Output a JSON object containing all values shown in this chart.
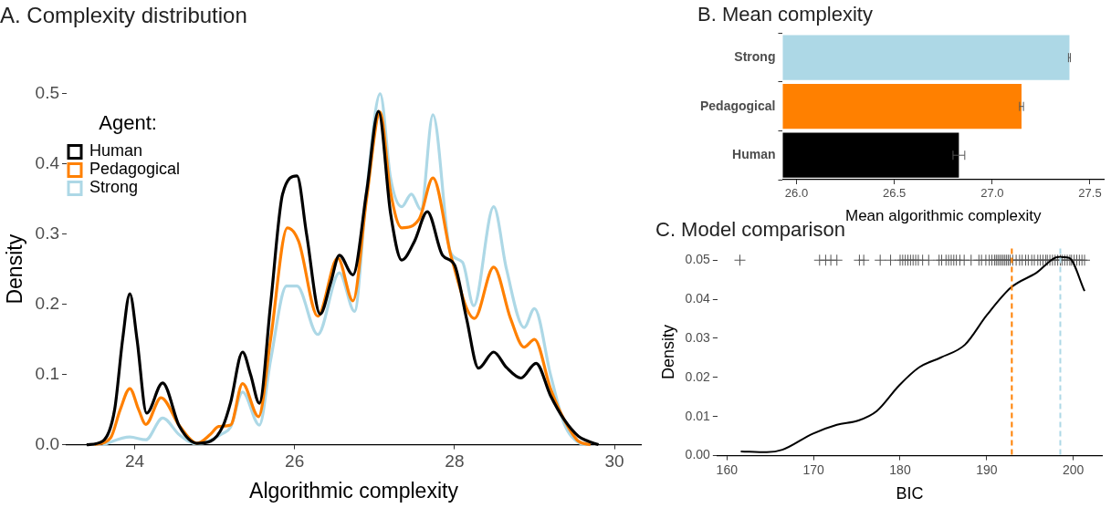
{
  "chart_data": [
    {
      "type": "line",
      "title": "A. Complexity distribution",
      "xlabel": "Algorithmic complexity",
      "ylabel": "Density",
      "legend_title": "Agent:",
      "legend": "top left",
      "marker": "none",
      "grid": false,
      "xlim": [
        23.15,
        30.33
      ],
      "xticks": [
        24,
        26,
        28,
        30
      ],
      "ylim": [
        0,
        0.5
      ],
      "yticks": [
        {
          "value": 0,
          "label": "0.0"
        },
        0.1,
        0.2,
        0.3,
        0.4,
        0.5
      ],
      "series": [
        {
          "name": "Human",
          "color": "#000000",
          "x": [
            23.4,
            23.6,
            23.75,
            23.85,
            23.94,
            24.03,
            24.15,
            24.35,
            24.56,
            24.78,
            24.95,
            25.11,
            25.2,
            25.35,
            25.45,
            25.56,
            25.7,
            25.85,
            26.03,
            26.15,
            26.32,
            26.45,
            26.56,
            26.73,
            26.9,
            27.05,
            27.2,
            27.34,
            27.5,
            27.66,
            27.85,
            28.0,
            28.15,
            28.3,
            28.49,
            28.65,
            28.83,
            29.02,
            29.2,
            29.37,
            29.55,
            29.65,
            29.8
          ],
          "values": [
            0,
            0.005,
            0.05,
            0.15,
            0.215,
            0.15,
            0.045,
            0.088,
            0.026,
            0.002,
            0.005,
            0.028,
            0.06,
            0.132,
            0.1,
            0.059,
            0.2,
            0.357,
            0.383,
            0.3,
            0.186,
            0.23,
            0.27,
            0.242,
            0.36,
            0.475,
            0.33,
            0.263,
            0.29,
            0.332,
            0.27,
            0.256,
            0.18,
            0.109,
            0.132,
            0.11,
            0.095,
            0.116,
            0.07,
            0.036,
            0.012,
            0.006,
            0
          ]
        },
        {
          "name": "Pedagogical",
          "color": "#ff8000",
          "x": [
            23.5,
            23.7,
            23.82,
            23.94,
            24.05,
            24.14,
            24.33,
            24.56,
            24.78,
            24.95,
            25.05,
            25.2,
            25.35,
            25.55,
            25.7,
            25.91,
            26.05,
            26.29,
            26.54,
            26.73,
            26.9,
            27.07,
            27.2,
            27.34,
            27.56,
            27.73,
            27.96,
            28.25,
            28.49,
            28.7,
            28.87,
            29.0,
            29.2,
            29.37,
            29.55,
            29.7
          ],
          "values": [
            0,
            0.01,
            0.05,
            0.08,
            0.05,
            0.029,
            0.067,
            0.027,
            0.002,
            0.015,
            0.026,
            0.028,
            0.087,
            0.04,
            0.15,
            0.309,
            0.29,
            0.183,
            0.266,
            0.205,
            0.35,
            0.474,
            0.36,
            0.309,
            0.322,
            0.38,
            0.267,
            0.18,
            0.253,
            0.18,
            0.139,
            0.15,
            0.08,
            0.036,
            0.005,
            0
          ]
        },
        {
          "name": "Strong",
          "color": "#add8e6",
          "x": [
            23.6,
            23.94,
            24.14,
            24.35,
            24.56,
            24.78,
            25.1,
            25.2,
            25.35,
            25.56,
            25.7,
            25.9,
            26.03,
            26.29,
            26.56,
            26.75,
            26.9,
            27.07,
            27.2,
            27.34,
            27.46,
            27.58,
            27.73,
            27.95,
            28.1,
            28.24,
            28.49,
            28.65,
            28.87,
            29.0,
            29.2,
            29.37,
            29.55,
            29.65
          ],
          "values": [
            0,
            0.011,
            0.007,
            0.038,
            0.014,
            0.001,
            0.016,
            0.025,
            0.075,
            0.028,
            0.12,
            0.226,
            0.226,
            0.157,
            0.245,
            0.19,
            0.36,
            0.5,
            0.38,
            0.339,
            0.357,
            0.335,
            0.47,
            0.274,
            0.26,
            0.198,
            0.339,
            0.25,
            0.167,
            0.194,
            0.1,
            0.03,
            0.003,
            0
          ]
        }
      ]
    },
    {
      "type": "bar",
      "orientation": "horizontal",
      "title": "B. Mean complexity",
      "xlabel": "Mean algorithmic complexity",
      "grid": false,
      "categories": [
        "Strong",
        "Pedagogical",
        "Human"
      ],
      "values": [
        27.395,
        27.15,
        26.83
      ],
      "errors": [
        0.005,
        0.01,
        0.03
      ],
      "colors": [
        "#add8e6",
        "#ff8000",
        "#000000"
      ],
      "xlim": [
        25.93,
        27.57
      ],
      "xticks": [
        {
          "value": 26,
          "label": "26.0"
        },
        26.5,
        {
          "value": 27,
          "label": "27.0"
        },
        27.5
      ]
    },
    {
      "type": "line",
      "title": "C. Model comparison",
      "xlabel": "BIC",
      "ylabel": "Density",
      "grid": false,
      "xlim": [
        158.9,
        203.3
      ],
      "xticks": [
        160,
        170,
        180,
        190,
        200
      ],
      "ylim": [
        0,
        0.053
      ],
      "yticks": [
        {
          "value": 0,
          "label": "0.00"
        },
        0.01,
        0.02,
        0.03,
        0.04,
        0.05
      ],
      "ref_lines": [
        {
          "axis": "x",
          "value": 192.9,
          "color": "#ff8000",
          "line_style": "dashed"
        },
        {
          "axis": "x",
          "value": 198.5,
          "color": "#add8e6",
          "line_style": "dashed"
        }
      ],
      "series": [
        {
          "color": "#000000",
          "x": [
            161.6,
            164.6,
            166.4,
            169.9,
            172.7,
            175.2,
            177.3,
            179.9,
            182.2,
            184.7,
            187.5,
            190.0,
            192.8,
            195.7,
            198.3,
            199.5,
            201.3
          ],
          "values": [
            0.0011,
            0.0009,
            0.0015,
            0.0056,
            0.0079,
            0.009,
            0.0114,
            0.018,
            0.0226,
            0.0251,
            0.0284,
            0.0359,
            0.043,
            0.0467,
            0.0508,
            0.0506,
            0.0421
          ]
        },
        {
          "type": "scatter",
          "marker": "cross",
          "color": "#555555",
          "x": [
            161.5,
            170.7,
            171.4,
            172.0,
            172.7,
            175.3,
            175.8,
            177.7,
            178.9,
            180.0,
            180.3,
            180.6,
            180.9,
            181.2,
            181.5,
            181.8,
            182.1,
            182.6,
            183.3,
            184.5,
            184.8,
            185.3,
            185.6,
            185.9,
            186.2,
            186.5,
            186.9,
            187.4,
            188.2,
            189.1,
            189.4,
            189.9,
            190.3,
            190.6,
            190.9,
            191.1,
            191.3,
            191.5,
            191.7,
            191.9,
            192.1,
            192.3,
            192.5,
            192.7,
            193.0,
            193.4,
            193.8,
            194.1,
            194.5,
            194.8,
            195.2,
            195.5,
            195.9,
            196.2,
            196.5,
            196.8,
            197.0,
            197.3,
            197.6,
            197.9,
            198.2,
            198.5,
            198.7,
            199.0,
            199.3,
            199.6,
            199.8,
            200.1,
            200.4,
            200.7,
            201.0,
            201.3
          ],
          "values": [
            0.05,
            0.05,
            0.05,
            0.05,
            0.05,
            0.05,
            0.05,
            0.05,
            0.05,
            0.05,
            0.05,
            0.05,
            0.05,
            0.05,
            0.05,
            0.05,
            0.05,
            0.05,
            0.05,
            0.05,
            0.05,
            0.05,
            0.05,
            0.05,
            0.05,
            0.05,
            0.05,
            0.05,
            0.05,
            0.05,
            0.05,
            0.05,
            0.05,
            0.05,
            0.05,
            0.05,
            0.05,
            0.05,
            0.05,
            0.05,
            0.05,
            0.05,
            0.05,
            0.05,
            0.05,
            0.05,
            0.05,
            0.05,
            0.05,
            0.05,
            0.05,
            0.05,
            0.05,
            0.05,
            0.05,
            0.05,
            0.05,
            0.05,
            0.05,
            0.05,
            0.05,
            0.05,
            0.05,
            0.05,
            0.05,
            0.05,
            0.05,
            0.05,
            0.05,
            0.05,
            0.05,
            0.05
          ]
        }
      ]
    }
  ]
}
